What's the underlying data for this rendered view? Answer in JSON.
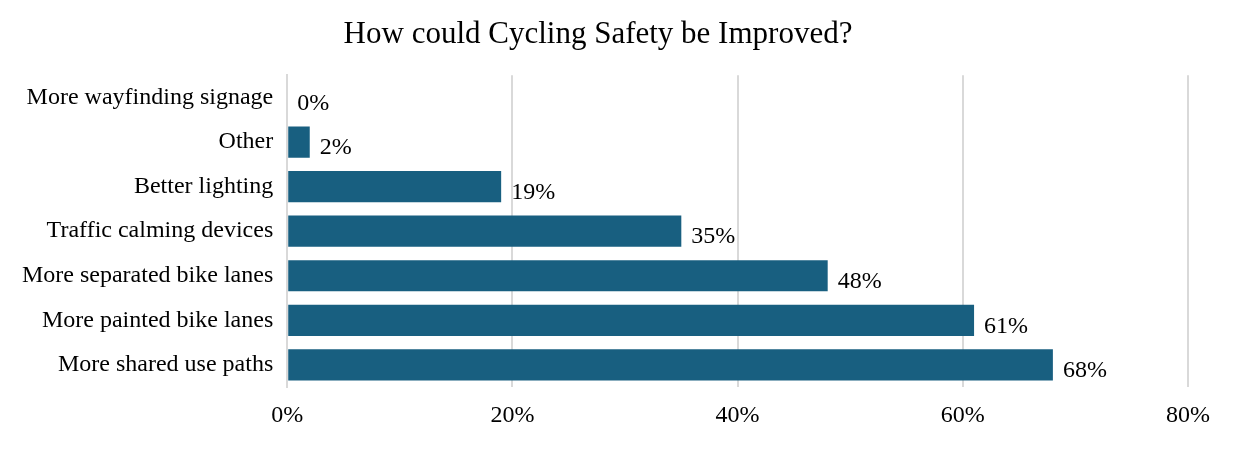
{
  "chart_data": {
    "type": "bar",
    "orientation": "horizontal",
    "title": "How could Cycling Safety be Improved?",
    "categories": [
      "More wayfinding signage",
      "Other",
      "Better lighting",
      "Traffic calming devices",
      "More separated bike lanes",
      "More painted bike lanes",
      "More shared use paths"
    ],
    "values": [
      0,
      2,
      19,
      35,
      48,
      61,
      68
    ],
    "value_labels": [
      "0%",
      "2%",
      "19%",
      "35%",
      "48%",
      "61%",
      "68%"
    ],
    "color": "#185f80",
    "xlim": [
      0,
      80
    ],
    "xticks": [
      {
        "value": 0,
        "label": "0%"
      },
      {
        "value": 20,
        "label": "20%"
      },
      {
        "value": 40,
        "label": "40%"
      },
      {
        "value": 60,
        "label": "60%"
      },
      {
        "value": 80,
        "label": "80%"
      }
    ],
    "grid": "x",
    "legend": false
  }
}
